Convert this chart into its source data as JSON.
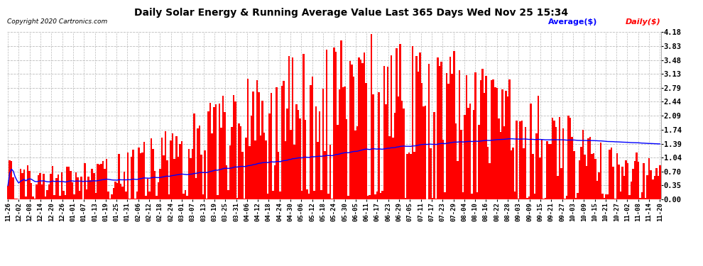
{
  "title": "Daily Solar Energy & Running Average Value Last 365 Days Wed Nov 25 15:34",
  "copyright": "Copyright 2020 Cartronics.com",
  "legend_avg": "Average($)",
  "legend_daily": "Daily($)",
  "avg_color": "#0000ff",
  "daily_color": "#ff0000",
  "background_color": "#ffffff",
  "grid_color": "#bbbbbb",
  "yticks": [
    0.0,
    0.35,
    0.7,
    1.04,
    1.39,
    1.74,
    2.09,
    2.44,
    2.79,
    3.13,
    3.48,
    3.83,
    4.18
  ],
  "ylim": [
    0.0,
    4.18
  ],
  "xtick_labels": [
    "11-26",
    "12-02",
    "12-08",
    "12-14",
    "12-20",
    "12-26",
    "01-01",
    "01-07",
    "01-13",
    "01-19",
    "01-25",
    "01-31",
    "02-06",
    "02-12",
    "02-18",
    "02-24",
    "03-01",
    "03-07",
    "03-13",
    "03-19",
    "03-25",
    "03-31",
    "04-06",
    "04-12",
    "04-18",
    "04-24",
    "04-30",
    "05-06",
    "05-12",
    "05-18",
    "05-24",
    "05-30",
    "06-05",
    "06-11",
    "06-17",
    "06-23",
    "06-29",
    "07-05",
    "07-11",
    "07-17",
    "07-23",
    "07-29",
    "08-04",
    "08-10",
    "08-16",
    "08-22",
    "08-28",
    "09-03",
    "09-09",
    "09-15",
    "09-21",
    "09-27",
    "10-03",
    "10-09",
    "10-15",
    "10-21",
    "10-27",
    "11-02",
    "11-08",
    "11-14",
    "11-20"
  ],
  "n_bars": 365,
  "title_fontsize": 10,
  "tick_fontsize": 7.5,
  "xtick_fontsize": 6.5,
  "legend_fontsize": 8
}
